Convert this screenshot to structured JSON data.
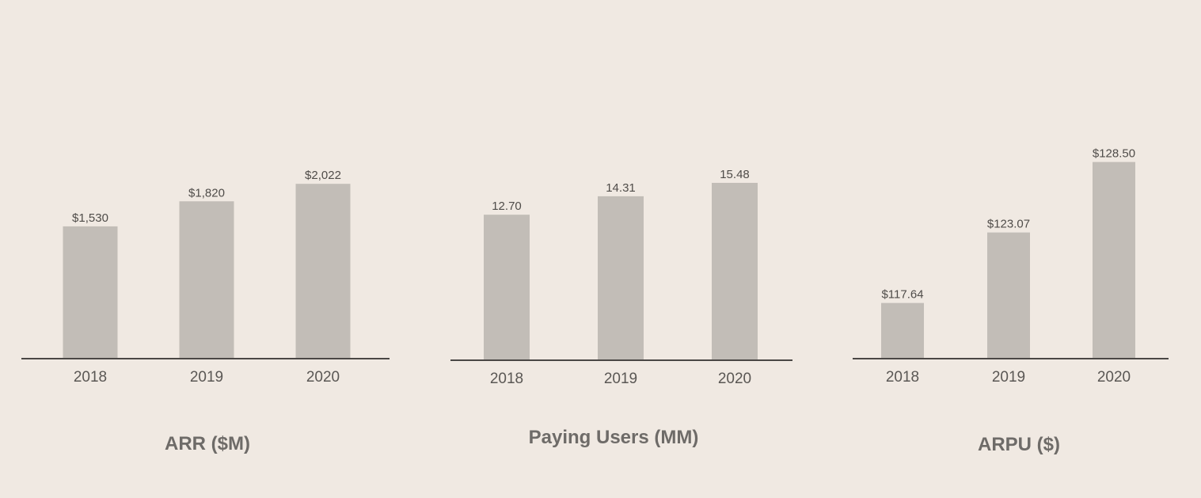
{
  "chart_data": [
    {
      "type": "bar",
      "title": "ARR ($M)",
      "categories": [
        "2018",
        "2019",
        "2020"
      ],
      "values": [
        1530,
        1820,
        2022
      ],
      "value_labels": [
        "$1,530",
        "$1,820",
        "$2,022"
      ],
      "ylim": [
        0,
        2500
      ],
      "grid": false
    },
    {
      "type": "bar",
      "title": "Paying Users (MM)",
      "categories": [
        "2018",
        "2019",
        "2020"
      ],
      "values": [
        12.7,
        14.31,
        15.48
      ],
      "value_labels": [
        "12.70",
        "14.31",
        "15.48"
      ],
      "ylim": [
        0,
        19
      ],
      "grid": false
    },
    {
      "type": "bar",
      "title": "ARPU ($)",
      "categories": [
        "2018",
        "2019",
        "2020"
      ],
      "values": [
        117.64,
        123.07,
        128.5
      ],
      "value_labels": [
        "$117.64",
        "$123.07",
        "$128.50"
      ],
      "ylim": [
        113.35,
        130
      ],
      "grid": false
    }
  ],
  "colors": {
    "background": "#f0e9e2",
    "bar": "#c2bdb7",
    "axis": "#4a4745",
    "value_text": "#4f4c49",
    "tick_text": "#5a5754",
    "title_text": "#6e6b68"
  }
}
